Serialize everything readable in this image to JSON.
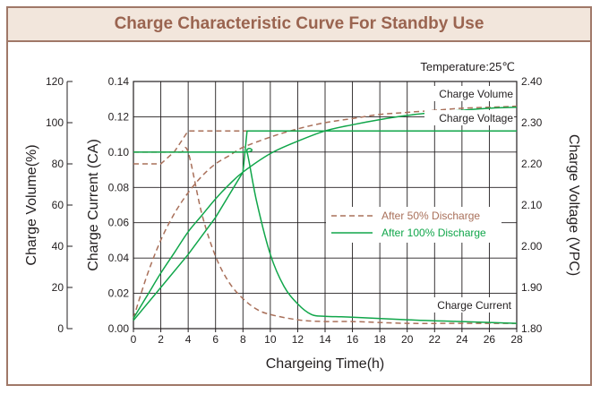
{
  "header": {
    "title": "Charge Characteristic Curve For Standby Use"
  },
  "colors": {
    "header_bg": "#f2e6dc",
    "header_text": "#9a6450",
    "frame": "#a07868",
    "brown": "#a9705a",
    "green": "#10a64a",
    "text": "#231f20"
  },
  "chart_data": {
    "type": "line",
    "title": "Charge Characteristic Curve For Standby Use",
    "annotation_temperature": "Temperature:25℃",
    "xlabel": "Chargeing Time(h)",
    "xlim": [
      0,
      28
    ],
    "xticks": [
      0,
      2,
      4,
      6,
      8,
      10,
      12,
      14,
      16,
      18,
      20,
      22,
      24,
      26,
      28
    ],
    "grid": true,
    "legend_position": "center-right",
    "axes": {
      "volume": {
        "label": "Charge Volume(%)",
        "range": [
          0,
          120
        ],
        "ticks": [
          0,
          20,
          40,
          60,
          80,
          100,
          120
        ]
      },
      "current": {
        "label": "Charge Current (CA)",
        "range": [
          0,
          0.14
        ],
        "ticks": [
          "0.00",
          "0.02",
          "0.04",
          "0.06",
          "0.08",
          "0.10",
          "0.12",
          "0.14"
        ]
      },
      "voltage": {
        "label": "Charge Voltage (VPC)",
        "range": [
          1.8,
          2.4
        ],
        "ticks": [
          "1.80",
          "1.90",
          "2.00",
          "2.10",
          "2.20",
          "2.30",
          "2.40"
        ]
      }
    },
    "curve_labels": {
      "volume": "Charge Volume",
      "voltage": "Charge Voltage",
      "current": "Charge Current"
    },
    "series": [
      {
        "name": "After 50% Discharge",
        "style": "dashed",
        "color": "#a9705a",
        "data": {
          "volume": {
            "x": [
              0,
              1,
              2,
              3,
              4,
              5,
              6,
              7,
              8,
              10,
              12,
              14,
              16,
              18,
              20,
              22,
              24,
              26,
              28
            ],
            "y": [
              5,
              26,
              43,
              56,
              66,
              74,
              80,
              84,
              88,
              93,
              97,
              100,
              102,
              104,
              105,
              106,
              107,
              107.5,
              108
            ]
          },
          "voltage": {
            "x": [
              0,
              1,
              2,
              3,
              4,
              28
            ],
            "y": [
              2.2,
              2.2,
              2.2,
              2.23,
              2.28,
              2.28
            ]
          },
          "current": {
            "x": [
              0,
              2.5,
              3,
              3.5,
              4,
              5,
              6,
              7,
              8,
              9,
              10,
              12,
              14,
              16,
              20,
              24,
              28
            ],
            "y": [
              0.1,
              0.1,
              0.1,
              0.1,
              0.1,
              0.065,
              0.041,
              0.026,
              0.017,
              0.011,
              0.008,
              0.005,
              0.004,
              0.004,
              0.003,
              0.003,
              0.003
            ]
          }
        }
      },
      {
        "name": "After 100% Discharge",
        "style": "solid",
        "color": "#10a64a",
        "data": {
          "volume": {
            "x": [
              0,
              1,
              2,
              3,
              4,
              5,
              6,
              7,
              8,
              10,
              12,
              14,
              16,
              18,
              20,
              22,
              24,
              26,
              28
            ],
            "y": [
              5,
              16,
              27,
              37,
              47,
              55,
              63,
              70,
              76,
              85,
              91,
              96,
              99,
              101.5,
              103.5,
              105,
              106,
              107,
              107.5
            ]
          },
          "voltage": {
            "x": [
              0,
              2,
              4,
              6,
              8,
              8.3,
              28
            ],
            "y": [
              1.82,
              1.9,
              1.98,
              2.07,
              2.18,
              2.28,
              2.28
            ]
          },
          "current": {
            "x": [
              0,
              8,
              8.3,
              9,
              10,
              11,
              12,
              13,
              14,
              16,
              20,
              24,
              28
            ],
            "y": [
              0.1,
              0.1,
              0.1,
              0.072,
              0.042,
              0.024,
              0.014,
              0.008,
              0.007,
              0.0065,
              0.005,
              0.004,
              0.003
            ]
          }
        }
      }
    ]
  }
}
